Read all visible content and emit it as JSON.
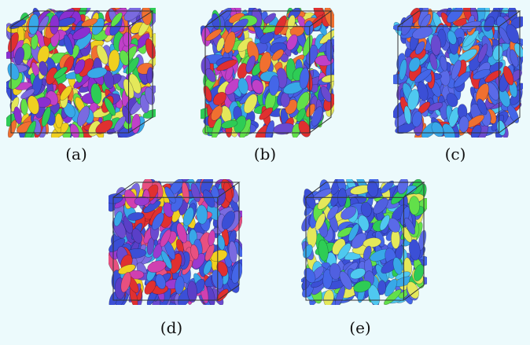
{
  "figure": {
    "panels": [
      {
        "id": "a",
        "caption": "(a)",
        "palette": [
          "#3b4fd6",
          "#5a3fc8",
          "#8a2fd0",
          "#c040c8",
          "#e4e85a",
          "#f0d020",
          "#62e04a",
          "#2ecc55",
          "#f07030",
          "#e03030",
          "#38a8e8",
          "#7a6ae0"
        ]
      },
      {
        "id": "b",
        "caption": "(b)",
        "palette": [
          "#3b4fd6",
          "#4a5ae0",
          "#6a4ad0",
          "#38a8e8",
          "#e4e85a",
          "#62e04a",
          "#f07030",
          "#e03030",
          "#c040c8",
          "#3b4fd6",
          "#4466e8",
          "#2ecc55"
        ]
      },
      {
        "id": "c",
        "caption": "(c)",
        "palette": [
          "#3b4fd6",
          "#4466e8",
          "#5a6ae8",
          "#6a4ad0",
          "#38a8e8",
          "#4fc8f0",
          "#3b4fd6",
          "#5060e0",
          "#f07030",
          "#e03030",
          "#4466e8",
          "#3b4fd6"
        ]
      },
      {
        "id": "d",
        "caption": "(d)",
        "palette": [
          "#3b4fd6",
          "#6a4ad0",
          "#9a3ad0",
          "#d040b0",
          "#e85080",
          "#38a8e8",
          "#4466e8",
          "#5a3fc8",
          "#f0d020",
          "#e03030",
          "#3b4fd6",
          "#7a6ae0"
        ]
      },
      {
        "id": "e",
        "caption": "(e)",
        "palette": [
          "#3b4fd6",
          "#4466e8",
          "#5a6ae8",
          "#38a8e8",
          "#4fc8f0",
          "#3b4fd6",
          "#5060e0",
          "#62e04a",
          "#2ecc55",
          "#e4e85a",
          "#4466e8",
          "#3b4fd6"
        ]
      }
    ]
  }
}
